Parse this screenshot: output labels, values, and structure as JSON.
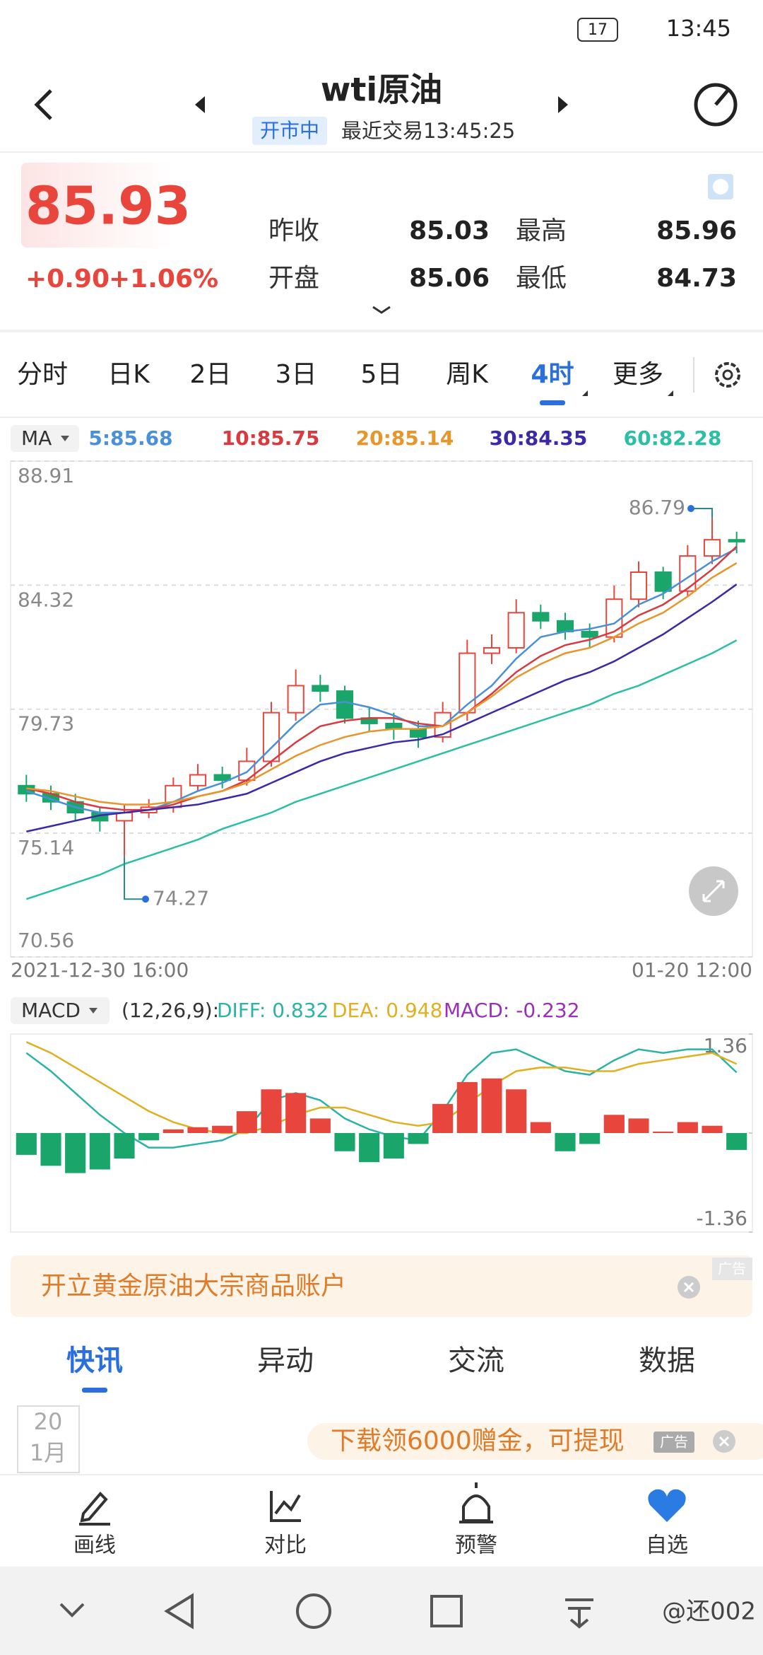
{
  "status_bar": {
    "time": "13:45",
    "battery": "17"
  },
  "header": {
    "title": "wti原油",
    "status": "开市中",
    "last_trade": "最近交易13:45:25"
  },
  "quote": {
    "price": 85.93,
    "change": "+0.90",
    "change_pct": "+1.06%",
    "fields": [
      {
        "label": "昨收",
        "value": 85.03
      },
      {
        "label": "最高",
        "value": 85.96
      },
      {
        "label": "开盘",
        "value": 85.06
      },
      {
        "label": "最低",
        "value": 84.73
      }
    ]
  },
  "tabs": [
    "分时",
    "日K",
    "2日",
    "3日",
    "5日",
    "周K",
    "4时",
    "更多"
  ],
  "active_tab": 6,
  "chart_data": [
    {
      "type": "candlestick",
      "indicator": "MA",
      "categories": [
        "2021-12-30 16:00",
        null,
        null,
        null,
        null,
        null,
        null,
        null,
        null,
        null,
        null,
        null,
        null,
        null,
        null,
        null,
        null,
        null,
        null,
        null,
        null,
        null,
        null,
        null,
        null,
        null,
        null,
        null,
        null,
        "01-20 12:00"
      ],
      "open": [
        76.9,
        76.6,
        76.3,
        75.9,
        75.6,
        75.9,
        76.1,
        76.9,
        77.3,
        77.1,
        77.8,
        79.6,
        80.6,
        80.4,
        79.4,
        79.2,
        79.0,
        78.7,
        79.6,
        81.8,
        82.0,
        83.3,
        83.0,
        82.6,
        82.4,
        83.8,
        84.8,
        84.1,
        85.4,
        86.0
      ],
      "high": [
        77.3,
        76.9,
        76.6,
        76.1,
        76.2,
        76.4,
        77.2,
        77.7,
        77.6,
        78.3,
        80.0,
        81.2,
        81.0,
        80.6,
        79.8,
        79.6,
        79.3,
        80.0,
        82.3,
        82.5,
        83.8,
        83.6,
        83.3,
        82.9,
        84.3,
        85.2,
        85.0,
        85.8,
        86.79,
        86.3
      ],
      "low": [
        76.3,
        76.0,
        75.6,
        75.2,
        74.27,
        75.7,
        75.9,
        76.7,
        76.8,
        76.9,
        77.6,
        79.3,
        80.0,
        79.2,
        78.9,
        78.6,
        78.3,
        78.5,
        79.3,
        81.4,
        81.8,
        82.7,
        82.3,
        82.0,
        82.2,
        83.5,
        83.8,
        83.9,
        85.1,
        85.5
      ],
      "close": [
        76.6,
        76.3,
        75.9,
        75.6,
        75.9,
        76.1,
        76.9,
        77.3,
        77.1,
        77.8,
        79.6,
        80.6,
        80.4,
        79.4,
        79.2,
        79.0,
        78.7,
        79.6,
        81.8,
        82.0,
        83.3,
        83.0,
        82.6,
        82.4,
        83.8,
        84.8,
        84.1,
        85.4,
        86.0,
        85.93
      ],
      "up_color": "#e8453c",
      "down_color": "#1aa66a",
      "series": [
        {
          "name": "5:85.68",
          "color": "#4a90d9",
          "values": [
            76.7,
            76.4,
            76.1,
            75.9,
            75.9,
            76.0,
            76.3,
            76.7,
            77.0,
            77.4,
            78.3,
            79.2,
            79.9,
            80.0,
            79.8,
            79.5,
            79.1,
            79.1,
            79.9,
            80.6,
            81.6,
            82.4,
            82.6,
            82.7,
            82.9,
            83.6,
            84.0,
            84.6,
            85.2,
            85.68
          ]
        },
        {
          "name": "10:85.75",
          "color": "#d93a40",
          "values": [
            76.8,
            76.6,
            76.3,
            76.1,
            76.0,
            76.0,
            76.2,
            76.5,
            76.7,
            77.1,
            77.8,
            78.5,
            79.1,
            79.3,
            79.4,
            79.4,
            79.2,
            79.1,
            79.6,
            80.3,
            81.1,
            81.7,
            82.1,
            82.3,
            82.6,
            83.2,
            83.6,
            84.2,
            84.9,
            85.75
          ]
        },
        {
          "name": "20:85.14",
          "color": "#e8952a",
          "values": [
            76.8,
            76.7,
            76.5,
            76.3,
            76.2,
            76.2,
            76.3,
            76.5,
            76.7,
            77.0,
            77.5,
            78.0,
            78.4,
            78.7,
            78.9,
            79.0,
            79.0,
            79.1,
            79.6,
            80.2,
            80.9,
            81.4,
            81.8,
            82.0,
            82.4,
            82.9,
            83.3,
            83.9,
            84.6,
            85.14
          ]
        },
        {
          "name": "30:84.35",
          "color": "#3b2aa8",
          "values": [
            75.2,
            75.4,
            75.6,
            75.8,
            75.9,
            76.0,
            76.1,
            76.2,
            76.4,
            76.6,
            77.0,
            77.4,
            77.8,
            78.1,
            78.3,
            78.5,
            78.6,
            78.8,
            79.2,
            79.6,
            80.0,
            80.4,
            80.8,
            81.1,
            81.5,
            82.0,
            82.5,
            83.1,
            83.7,
            84.35
          ]
        },
        {
          "name": "60:82.28",
          "color": "#2bbfa5",
          "values": [
            72.7,
            73.0,
            73.3,
            73.6,
            74.0,
            74.3,
            74.6,
            74.9,
            75.3,
            75.6,
            75.9,
            76.3,
            76.6,
            76.9,
            77.2,
            77.5,
            77.8,
            78.1,
            78.4,
            78.7,
            79.0,
            79.3,
            79.6,
            79.9,
            80.3,
            80.6,
            81.0,
            81.4,
            81.8,
            82.28
          ]
        }
      ],
      "ylim": [
        70.56,
        88.91
      ],
      "yticks": [
        88.91,
        84.32,
        79.73,
        75.14,
        70.56
      ],
      "grid": true,
      "annotations": [
        86.79,
        74.27
      ]
    },
    {
      "type": "macd",
      "indicator": "MACD",
      "params": "(12,26,9):",
      "series": [
        {
          "name": "DIFF: 0.832",
          "color": "#2bb3a5",
          "values": [
            1.1,
            0.85,
            0.55,
            0.25,
            0.0,
            -0.2,
            -0.2,
            -0.15,
            -0.1,
            0.05,
            0.45,
            0.55,
            0.45,
            0.2,
            0.05,
            -0.05,
            -0.1,
            0.3,
            0.8,
            1.1,
            1.15,
            1.0,
            0.85,
            0.8,
            1.0,
            1.15,
            1.1,
            1.15,
            1.15,
            0.832
          ]
        },
        {
          "name": "DEA: 0.948",
          "color": "#e0b020",
          "values": [
            1.25,
            1.1,
            0.9,
            0.7,
            0.5,
            0.3,
            0.15,
            0.05,
            0.0,
            0.0,
            0.1,
            0.25,
            0.35,
            0.35,
            0.25,
            0.15,
            0.1,
            0.15,
            0.4,
            0.65,
            0.85,
            0.9,
            0.9,
            0.85,
            0.85,
            0.95,
            1.0,
            1.05,
            1.1,
            0.948
          ]
        },
        {
          "name": "MACD: -0.232",
          "color": "#9b30b8",
          "type": "bar",
          "values": [
            -0.3,
            -0.45,
            -0.55,
            -0.5,
            -0.35,
            -0.1,
            0.05,
            0.08,
            0.1,
            0.3,
            0.6,
            0.55,
            0.2,
            -0.25,
            -0.4,
            -0.35,
            -0.15,
            0.4,
            0.7,
            0.75,
            0.6,
            0.15,
            -0.25,
            -0.15,
            0.25,
            0.2,
            0.02,
            0.15,
            0.1,
            -0.232
          ]
        }
      ],
      "up_color": "#e8453c",
      "down_color": "#1aa66a",
      "ylim": [
        -1.36,
        1.36
      ],
      "yticks": [
        1.36,
        0,
        -1.36
      ]
    }
  ],
  "ad_banner": {
    "text": "开立黄金原油大宗商品账户",
    "tag": "广告"
  },
  "news_tabs": [
    "快讯",
    "异动",
    "交流",
    "数据"
  ],
  "active_news_tab": 0,
  "news_date": {
    "day": "20",
    "month": "1月"
  },
  "promo": {
    "text": "下载领6000赠金，可提现",
    "tag": "广告"
  },
  "toolbar": [
    "画线",
    "对比",
    "预警",
    "自选"
  ],
  "watermark": "@还002"
}
